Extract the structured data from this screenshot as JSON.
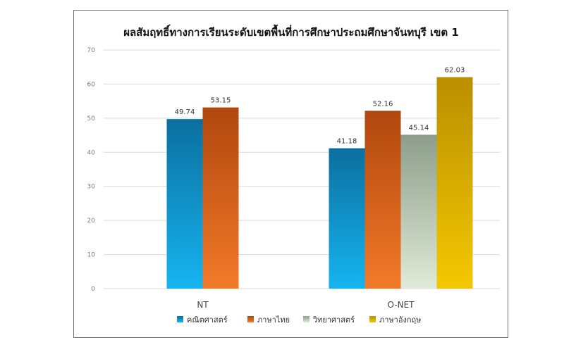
{
  "chart_data": {
    "type": "bar",
    "title": "ผลสัมฤทธิ์ทางการเรียนระดับเขตพื้นที่การศึกษาประถมศึกษาจันทบุรี เขต 1",
    "categories": [
      "NT",
      "O-NET"
    ],
    "ylim": [
      0,
      70
    ],
    "yticks": [
      0,
      10,
      20,
      30,
      40,
      50,
      60,
      70
    ],
    "grid": true,
    "legend_position": "bottom",
    "series": [
      {
        "name": "คณิตศาสตร์",
        "values": [
          49.74,
          41.18
        ],
        "labels": [
          "49.74",
          "41.18"
        ],
        "color": "#1f96d8",
        "color_top": "#0b6f9f",
        "color_bottom": "#16b5f0"
      },
      {
        "name": "ภาษาไทย",
        "values": [
          53.15,
          52.16
        ],
        "labels": [
          "53.15",
          "52.16"
        ],
        "color": "#e0681e",
        "color_top": "#b0470e",
        "color_bottom": "#f27a2a"
      },
      {
        "name": "วิทยาศาสตร์",
        "values": [
          null,
          45.14
        ],
        "labels": [
          "",
          "45.14"
        ],
        "color": "#b9c9b5",
        "color_top": "#8c9e8a",
        "color_bottom": "#e0ead8"
      },
      {
        "name": "ภาษาอังกฤษ",
        "values": [
          null,
          62.03
        ],
        "labels": [
          "",
          "62.03"
        ],
        "color": "#e0b400",
        "color_top": "#b98f00",
        "color_bottom": "#f4c800"
      }
    ]
  }
}
